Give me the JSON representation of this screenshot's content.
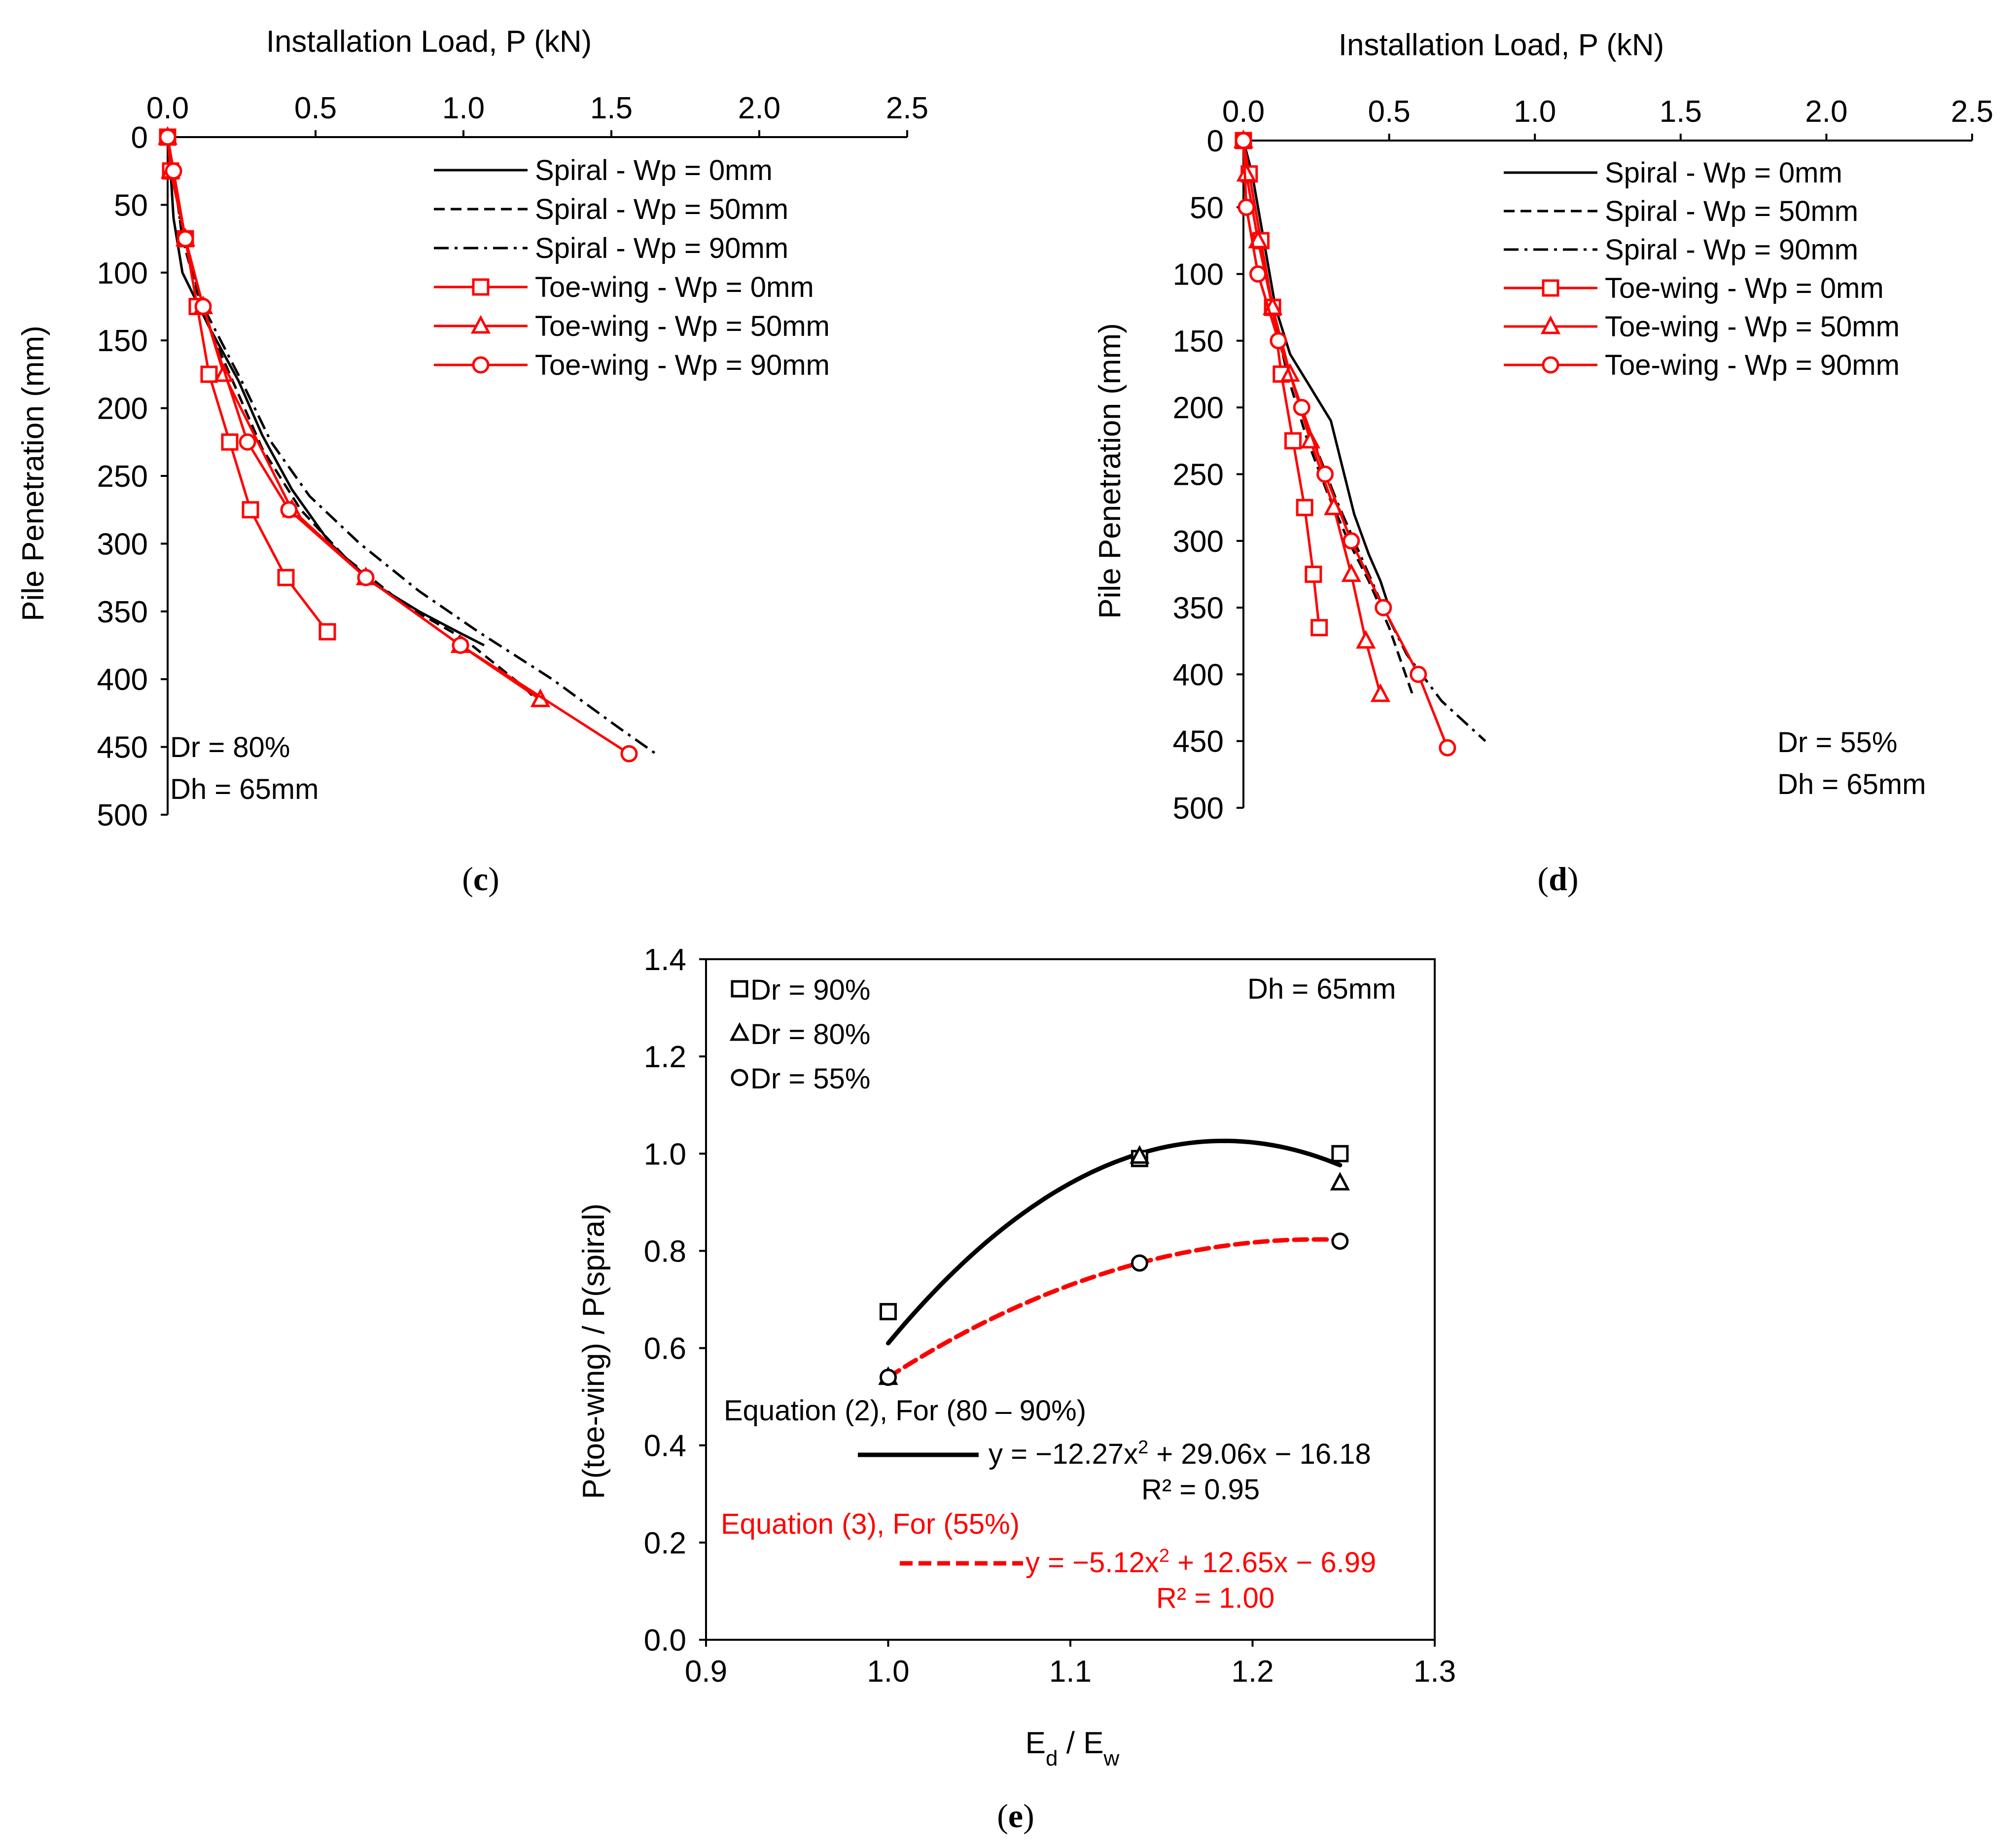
{
  "chart_data": [
    {
      "type": "line",
      "panel": "c",
      "caption_open": "(",
      "caption_letter": "c",
      "caption_close": ")",
      "xlabel": "Installation Load, P (kN)",
      "ylabel": "Pile Penetration (mm)",
      "xlim": [
        0,
        2.5
      ],
      "ylim": [
        0,
        500
      ],
      "xticks": [
        "0.0",
        "0.5",
        "1.0",
        "1.5",
        "2.0",
        "2.5"
      ],
      "yticks": [
        "0",
        "50",
        "100",
        "150",
        "200",
        "250",
        "300",
        "350",
        "400",
        "450",
        "500"
      ],
      "x_axis_position": "top",
      "y_axis_inverted": true,
      "legend_position": "top-right",
      "annotations": [
        "Dr  = 80%",
        "Dh = 65mm"
      ],
      "series": [
        {
          "name": "Spiral - Wp = 0mm",
          "color": "#000000",
          "dash": "solid",
          "marker": "none",
          "x": [
            0,
            0.01,
            0.02,
            0.05,
            0.14,
            0.24,
            0.32,
            0.42,
            0.55,
            0.7,
            0.85,
            0.98,
            1.07
          ],
          "y": [
            0,
            25,
            60,
            100,
            140,
            180,
            220,
            260,
            300,
            330,
            350,
            365,
            375
          ]
        },
        {
          "name": "Spiral - Wp = 50mm",
          "color": "#000000",
          "dash": "dashed",
          "marker": "none",
          "x": [
            0,
            0.02,
            0.05,
            0.12,
            0.22,
            0.32,
            0.45,
            0.6,
            0.8,
            1.0,
            1.2,
            1.27
          ],
          "y": [
            0,
            25,
            75,
            130,
            180,
            230,
            275,
            310,
            345,
            370,
            405,
            420
          ]
        },
        {
          "name": "Spiral - Wp = 90mm",
          "color": "#000000",
          "dash": "dashdot",
          "marker": "none",
          "x": [
            0,
            0.02,
            0.05,
            0.12,
            0.25,
            0.35,
            0.48,
            0.65,
            0.85,
            1.05,
            1.3,
            1.52,
            1.65
          ],
          "y": [
            0,
            25,
            75,
            125,
            180,
            225,
            265,
            300,
            335,
            365,
            400,
            435,
            455
          ]
        },
        {
          "name": "Toe-wing - Wp = 0mm",
          "color": "#ff0000",
          "dash": "solid",
          "marker": "square",
          "x": [
            0,
            0.01,
            0.06,
            0.1,
            0.14,
            0.21,
            0.28,
            0.4,
            0.54
          ],
          "y": [
            0,
            25,
            75,
            125,
            175,
            225,
            275,
            325,
            365
          ]
        },
        {
          "name": "Toe-wing - Wp = 50mm",
          "color": "#ff0000",
          "dash": "solid",
          "marker": "triangle",
          "x": [
            0,
            0.01,
            0.06,
            0.12,
            0.19,
            0.42,
            0.67,
            0.99,
            1.26
          ],
          "y": [
            0,
            25,
            75,
            125,
            175,
            275,
            325,
            375,
            415
          ]
        },
        {
          "name": "Toe-wing - Wp = 90mm",
          "color": "#ff0000",
          "dash": "solid",
          "marker": "circle",
          "x": [
            0,
            0.02,
            0.06,
            0.12,
            0.27,
            0.41,
            0.67,
            0.99,
            1.56
          ],
          "y": [
            0,
            25,
            75,
            125,
            225,
            275,
            325,
            375,
            455
          ]
        }
      ]
    },
    {
      "type": "line",
      "panel": "d",
      "caption_open": "(",
      "caption_letter": "d",
      "caption_close": ")",
      "xlabel": "Installation Load, P (kN)",
      "ylabel": "Pile Penetration (mm)",
      "xlim": [
        0,
        2.5
      ],
      "ylim": [
        0,
        500
      ],
      "xticks": [
        "0.0",
        "0.5",
        "1.0",
        "1.5",
        "2.0",
        "2.5"
      ],
      "yticks": [
        "0",
        "50",
        "100",
        "150",
        "200",
        "250",
        "300",
        "350",
        "400",
        "450",
        "500"
      ],
      "x_axis_position": "top",
      "y_axis_inverted": true,
      "legend_position": "top-right",
      "annotations": [
        "Dr  = 55%",
        "Dh = 65mm"
      ],
      "series": [
        {
          "name": "Spiral - Wp = 0mm",
          "color": "#000000",
          "dash": "solid",
          "marker": "none",
          "x": [
            0,
            0.03,
            0.07,
            0.11,
            0.16,
            0.23,
            0.3,
            0.34,
            0.38,
            0.43,
            0.47,
            0.5
          ],
          "y": [
            0,
            25,
            75,
            125,
            160,
            185,
            210,
            245,
            280,
            310,
            330,
            350
          ]
        },
        {
          "name": "Spiral - Wp = 50mm",
          "color": "#000000",
          "dash": "dashed",
          "marker": "none",
          "x": [
            0,
            0.02,
            0.06,
            0.1,
            0.15,
            0.22,
            0.29,
            0.36,
            0.43,
            0.5,
            0.58
          ],
          "y": [
            0,
            25,
            75,
            125,
            175,
            225,
            265,
            300,
            330,
            365,
            415
          ]
        },
        {
          "name": "Spiral - Wp = 90mm",
          "color": "#000000",
          "dash": "dashdot",
          "marker": "none",
          "x": [
            0,
            0.02,
            0.06,
            0.1,
            0.16,
            0.24,
            0.32,
            0.4,
            0.48,
            0.56,
            0.68,
            0.83
          ],
          "y": [
            0,
            25,
            75,
            125,
            175,
            225,
            270,
            310,
            350,
            385,
            420,
            450
          ]
        },
        {
          "name": "Toe-wing - Wp = 0mm",
          "color": "#ff0000",
          "dash": "solid",
          "marker": "square",
          "x": [
            0,
            0.02,
            0.06,
            0.1,
            0.13,
            0.17,
            0.21,
            0.24,
            0.26
          ],
          "y": [
            0,
            25,
            75,
            125,
            175,
            225,
            275,
            325,
            365
          ]
        },
        {
          "name": "Toe-wing - Wp = 50mm",
          "color": "#ff0000",
          "dash": "solid",
          "marker": "triangle",
          "x": [
            0,
            0.01,
            0.05,
            0.1,
            0.16,
            0.23,
            0.31,
            0.37,
            0.42,
            0.47
          ],
          "y": [
            0,
            25,
            75,
            125,
            175,
            225,
            275,
            325,
            375,
            415
          ]
        },
        {
          "name": "Toe-wing - Wp = 90mm",
          "color": "#ff0000",
          "dash": "solid",
          "marker": "circle",
          "x": [
            0,
            0.01,
            0.05,
            0.12,
            0.2,
            0.28,
            0.37,
            0.48,
            0.6,
            0.7
          ],
          "y": [
            0,
            50,
            100,
            150,
            200,
            250,
            300,
            350,
            400,
            455
          ]
        }
      ]
    },
    {
      "type": "scatter",
      "panel": "e",
      "caption_open": "(",
      "caption_letter": "e",
      "caption_close": ")",
      "xlabel_main": "E",
      "xlabel_sub1": "d",
      "xlabel_mid": " / E",
      "xlabel_sub2": "w",
      "ylabel": "P(toe-wing) / P(spiral)",
      "xlim": [
        0.9,
        1.3
      ],
      "ylim": [
        0.0,
        1.4
      ],
      "xticks": [
        "0.9",
        "1.0",
        "1.1",
        "1.2",
        "1.3"
      ],
      "yticks": [
        "0.0",
        "0.2",
        "0.4",
        "0.6",
        "0.8",
        "1.0",
        "1.2",
        "1.4"
      ],
      "legend_position": "top-left",
      "annotation": "Dh = 65mm",
      "series": [
        {
          "name": "Dr = 90%",
          "marker": "square",
          "color": "#000000",
          "x": [
            1.0,
            1.138,
            1.248
          ],
          "y": [
            0.675,
            0.99,
            1.0
          ]
        },
        {
          "name": "Dr = 80%",
          "marker": "triangle",
          "color": "#000000",
          "x": [
            1.0,
            1.138,
            1.248
          ],
          "y": [
            0.54,
            0.995,
            0.94
          ]
        },
        {
          "name": "Dr = 55%",
          "marker": "circle",
          "color": "#000000",
          "x": [
            1.0,
            1.138,
            1.248
          ],
          "y": [
            0.54,
            0.775,
            0.82
          ]
        }
      ],
      "trendlines": [
        {
          "label": "Equation (2), For (80 – 90%)",
          "color": "#000000",
          "dash": "solid",
          "a": -12.27,
          "b": 29.06,
          "c": -16.18,
          "x_range": [
            1.0,
            1.248
          ],
          "eq_pre": "y = −12.27x",
          "eq_sup": "2",
          "eq_post": " + 29.06x − 16.18",
          "r2": "R² = 0.95"
        },
        {
          "label": "Equation (3), For (55%)",
          "color": "#ff0000",
          "dash": "dashed",
          "a": -5.12,
          "b": 12.65,
          "c": -6.99,
          "x_range": [
            1.0,
            1.248
          ],
          "eq_pre": "y = −5.12x",
          "eq_sup": "2",
          "eq_post": " + 12.65x − 6.99",
          "r2": "R² = 1.00"
        }
      ]
    }
  ]
}
